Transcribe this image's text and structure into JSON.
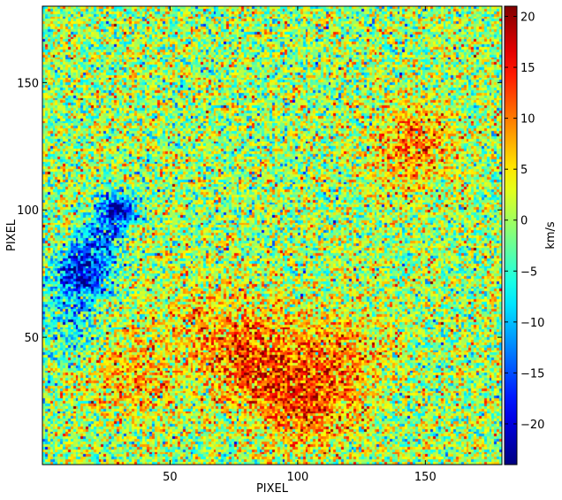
{
  "chart_data": {
    "type": "heatmap",
    "title": "",
    "xlabel": "PIXEL",
    "ylabel": "PIXEL",
    "xlim": [
      0,
      180
    ],
    "ylim": [
      0,
      180
    ],
    "x_ticks": [
      50,
      100,
      150
    ],
    "y_ticks": [
      50,
      100,
      150
    ],
    "grid": false,
    "colormap": "jet",
    "colorbar": {
      "label": "km/s",
      "range": [
        -24,
        21
      ],
      "ticks": [
        20,
        15,
        10,
        5,
        0,
        -5,
        -10,
        -15,
        -20
      ],
      "tick_labels": [
        "20",
        "15",
        "10",
        "5",
        "0",
        "−5",
        "−10",
        "−15",
        "−20"
      ]
    },
    "background_level": 0,
    "noise_amplitude": 6,
    "features": [
      {
        "x": 29,
        "y": 100,
        "sigma": 5,
        "amplitude": -22
      },
      {
        "x": 15,
        "y": 75,
        "sigma": 7,
        "amplitude": -20
      },
      {
        "x": 22,
        "y": 88,
        "sigma": 6,
        "amplitude": -12
      },
      {
        "x": 10,
        "y": 55,
        "sigma": 10,
        "amplitude": -7
      },
      {
        "x": 82,
        "y": 42,
        "sigma": 14,
        "amplitude": 12
      },
      {
        "x": 105,
        "y": 25,
        "sigma": 13,
        "amplitude": 11
      },
      {
        "x": 35,
        "y": 35,
        "sigma": 12,
        "amplitude": 8
      },
      {
        "x": 145,
        "y": 125,
        "sigma": 11,
        "amplitude": 10
      },
      {
        "x": 120,
        "y": 45,
        "sigma": 12,
        "amplitude": 6
      },
      {
        "x": 60,
        "y": 60,
        "sigma": 12,
        "amplitude": 4
      }
    ]
  }
}
